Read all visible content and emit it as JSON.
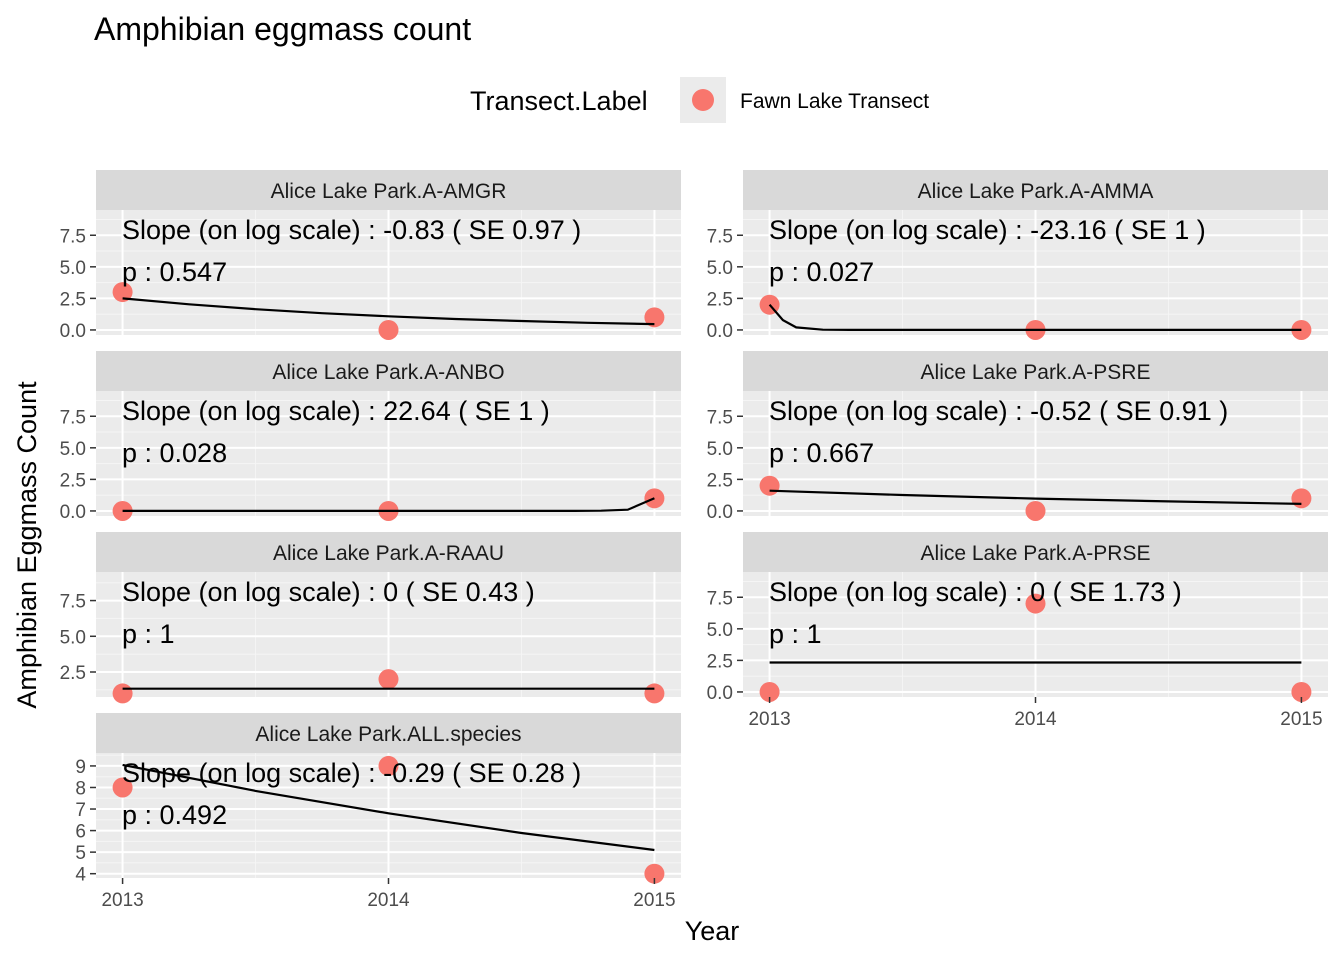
{
  "chart_data": {
    "type": "scatter",
    "title": "Amphibian eggmass count",
    "xlabel": "Year",
    "ylabel": "Amphibian Eggmass Count",
    "legend": {
      "title": "Transect.Label",
      "placement": "top",
      "entries": [
        {
          "name": "Fawn Lake Transect",
          "color": "#F8766D"
        }
      ]
    },
    "x_ticks": [
      2013,
      2014,
      2015
    ],
    "xlim": [
      2012.9,
      2015.1
    ],
    "grid": true,
    "point_color": "#F8766D",
    "fit_line_color": "#000000",
    "panels": [
      {
        "strip": "Alice Lake Park.A-AMGR",
        "slope_text": "Slope (on log scale) :  -0.83  ( SE  0.97 )",
        "p_text": "p : 0.547",
        "ylim": [
          -0.4,
          9.5
        ],
        "y_ticks": [
          0,
          2.5,
          5,
          7.5
        ],
        "y_tick_labels": [
          "0.0",
          "2.5",
          "5.0",
          "7.5"
        ],
        "points": {
          "x": [
            2013,
            2014,
            2015
          ],
          "y": [
            3,
            0,
            1
          ]
        },
        "fit": {
          "x": [
            2013,
            2013.25,
            2013.5,
            2013.75,
            2014,
            2014.25,
            2014.5,
            2014.75,
            2015
          ],
          "y": [
            2.5,
            2.03,
            1.64,
            1.33,
            1.08,
            0.87,
            0.71,
            0.57,
            0.46
          ]
        }
      },
      {
        "strip": "Alice Lake Park.A-AMMA",
        "slope_text": "Slope (on log scale) :  -23.16  ( SE  1 )",
        "p_text": "p : 0.027",
        "ylim": [
          -0.4,
          9.5
        ],
        "y_ticks": [
          0,
          2.5,
          5,
          7.5
        ],
        "y_tick_labels": [
          "0.0",
          "2.5",
          "5.0",
          "7.5"
        ],
        "points": {
          "x": [
            2013,
            2014,
            2015
          ],
          "y": [
            2,
            0,
            0
          ]
        },
        "fit": {
          "x": [
            2013,
            2013.05,
            2013.1,
            2013.2,
            2013.3,
            2014,
            2015
          ],
          "y": [
            2,
            0.78,
            0.2,
            0.02,
            0,
            0,
            0
          ]
        }
      },
      {
        "strip": "Alice Lake Park.A-ANBO",
        "slope_text": "Slope (on log scale) :  22.64  ( SE  1 )",
        "p_text": "p : 0.028",
        "ylim": [
          -0.4,
          9.5
        ],
        "y_ticks": [
          0,
          2.5,
          5,
          7.5
        ],
        "y_tick_labels": [
          "0.0",
          "2.5",
          "5.0",
          "7.5"
        ],
        "points": {
          "x": [
            2013,
            2014,
            2015
          ],
          "y": [
            0,
            0,
            1
          ]
        },
        "fit": {
          "x": [
            2013,
            2014,
            2014.7,
            2014.8,
            2014.9,
            2015
          ],
          "y": [
            0,
            0,
            0,
            0.02,
            0.1,
            1
          ]
        }
      },
      {
        "strip": "Alice Lake Park.A-PSRE",
        "slope_text": "Slope (on log scale) :  -0.52  ( SE  0.91 )",
        "p_text": "p : 0.667",
        "ylim": [
          -0.4,
          9.5
        ],
        "y_ticks": [
          0,
          2.5,
          5,
          7.5
        ],
        "y_tick_labels": [
          "0.0",
          "2.5",
          "5.0",
          "7.5"
        ],
        "points": {
          "x": [
            2013,
            2014,
            2015
          ],
          "y": [
            2,
            0,
            1
          ]
        },
        "fit": {
          "x": [
            2013,
            2013.5,
            2014,
            2014.5,
            2015
          ],
          "y": [
            1.6,
            1.26,
            0.98,
            0.76,
            0.56
          ]
        }
      },
      {
        "strip": "Alice Lake Park.A-RAAU",
        "slope_text": "Slope (on log scale) :  0  ( SE  0.43 )",
        "p_text": "p : 1",
        "ylim": [
          0.75,
          9.5
        ],
        "y_ticks": [
          2.5,
          5,
          7.5
        ],
        "y_tick_labels": [
          "2.5",
          "5.0",
          "7.5"
        ],
        "points": {
          "x": [
            2013,
            2014,
            2015
          ],
          "y": [
            1,
            2,
            1
          ]
        },
        "fit": {
          "x": [
            2013,
            2015
          ],
          "y": [
            1.33,
            1.33
          ]
        }
      },
      {
        "strip": "Alice Lake Park.A-PRSE",
        "slope_text": "Slope (on log scale) :  0  ( SE  1.73 )",
        "p_text": "p : 1",
        "ylim": [
          -0.4,
          9.5
        ],
        "y_ticks": [
          0,
          2.5,
          5,
          7.5
        ],
        "y_tick_labels": [
          "0.0",
          "2.5",
          "5.0",
          "7.5"
        ],
        "points": {
          "x": [
            2013,
            2014,
            2015
          ],
          "y": [
            0,
            7,
            0
          ]
        },
        "fit": {
          "x": [
            2013,
            2015
          ],
          "y": [
            2.33,
            2.33
          ]
        }
      },
      {
        "strip": "Alice Lake Park.ALL.species",
        "slope_text": "Slope (on log scale) :  -0.29  ( SE  0.28 )",
        "p_text": "p : 0.492",
        "ylim": [
          3.8,
          9.6
        ],
        "y_ticks": [
          4,
          5,
          6,
          7,
          8,
          9
        ],
        "y_tick_labels": [
          "4",
          "5",
          "6",
          "7",
          "8",
          "9"
        ],
        "points": {
          "x": [
            2013,
            2014,
            2015
          ],
          "y": [
            8,
            9,
            4
          ]
        },
        "fit": {
          "x": [
            2013,
            2013.5,
            2014,
            2014.5,
            2015
          ],
          "y": [
            9.05,
            7.84,
            6.8,
            5.89,
            5.1
          ]
        }
      }
    ]
  }
}
